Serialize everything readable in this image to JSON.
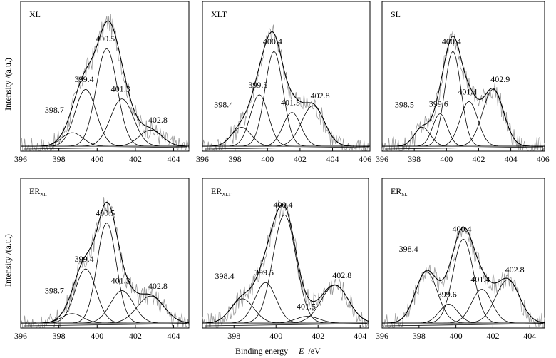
{
  "figure": {
    "ylabel": "Intensity /(a.u.)",
    "xlabel_text": "Binding energy",
    "xlabel_var": "E",
    "xlabel_unit": "/eV"
  },
  "chart_data": [
    {
      "type": "line",
      "title": "XL",
      "title_main": "XL",
      "title_sub": "",
      "xlim": [
        396,
        404.8
      ],
      "xticks": [
        396,
        398,
        400,
        402,
        404
      ],
      "peaks": [
        {
          "center": 398.7,
          "height": 0.1,
          "width": 0.55,
          "label": "398.7"
        },
        {
          "center": 399.4,
          "height": 0.42,
          "width": 0.55,
          "label": "399.4"
        },
        {
          "center": 400.5,
          "height": 0.72,
          "width": 0.55,
          "label": "400.5"
        },
        {
          "center": 401.3,
          "height": 0.35,
          "width": 0.6,
          "label": "401.3"
        },
        {
          "center": 402.8,
          "height": 0.12,
          "width": 0.6,
          "label": "402.8"
        }
      ]
    },
    {
      "type": "line",
      "title": "XLT",
      "title_main": "XLT",
      "title_sub": "",
      "xlim": [
        396,
        406.3
      ],
      "xticks": [
        396,
        398,
        400,
        402,
        404,
        406
      ],
      "peaks": [
        {
          "center": 398.4,
          "height": 0.14,
          "width": 0.6,
          "label": "398.4"
        },
        {
          "center": 399.5,
          "height": 0.38,
          "width": 0.55,
          "label": "399.5"
        },
        {
          "center": 400.4,
          "height": 0.7,
          "width": 0.55,
          "label": "400.4"
        },
        {
          "center": 401.5,
          "height": 0.25,
          "width": 0.55,
          "label": "401.5"
        },
        {
          "center": 402.8,
          "height": 0.3,
          "width": 0.7,
          "label": "402.8"
        }
      ]
    },
    {
      "type": "line",
      "title": "SL",
      "title_main": "SL",
      "title_sub": "",
      "xlim": [
        396,
        406.1
      ],
      "xticks": [
        396,
        398,
        400,
        402,
        404,
        406
      ],
      "peaks": [
        {
          "center": 398.5,
          "height": 0.14,
          "width": 0.5,
          "label": "398.5"
        },
        {
          "center": 399.6,
          "height": 0.24,
          "width": 0.45,
          "label": "399.6"
        },
        {
          "center": 400.4,
          "height": 0.7,
          "width": 0.5,
          "label": "400.4"
        },
        {
          "center": 401.4,
          "height": 0.33,
          "width": 0.55,
          "label": "401.4"
        },
        {
          "center": 402.9,
          "height": 0.42,
          "width": 0.65,
          "label": "402.9"
        }
      ]
    },
    {
      "type": "line",
      "title": "ERXL",
      "title_main": "ER",
      "title_sub": "XL",
      "xlim": [
        396,
        404.8
      ],
      "xticks": [
        396,
        398,
        400,
        402,
        404
      ],
      "peaks": [
        {
          "center": 398.7,
          "height": 0.07,
          "width": 0.55,
          "label": "398.7"
        },
        {
          "center": 399.4,
          "height": 0.4,
          "width": 0.55,
          "label": "399.4"
        },
        {
          "center": 400.5,
          "height": 0.74,
          "width": 0.5,
          "label": "400.5"
        },
        {
          "center": 401.3,
          "height": 0.24,
          "width": 0.6,
          "label": "401.3"
        },
        {
          "center": 402.8,
          "height": 0.2,
          "width": 0.7,
          "label": "402.8"
        }
      ]
    },
    {
      "type": "line",
      "title": "ERXLT",
      "title_main": "ER",
      "title_sub": "XLT",
      "xlim": [
        396.5,
        404.4
      ],
      "xticks": [
        398,
        400,
        402,
        404
      ],
      "peaks": [
        {
          "center": 398.4,
          "height": 0.18,
          "width": 0.55,
          "label": "398.4"
        },
        {
          "center": 399.5,
          "height": 0.3,
          "width": 0.5,
          "label": "399.5"
        },
        {
          "center": 400.4,
          "height": 0.8,
          "width": 0.55,
          "label": "400.4"
        },
        {
          "center": 401.5,
          "height": 0.05,
          "width": 0.55,
          "label": "401.5"
        },
        {
          "center": 402.8,
          "height": 0.28,
          "width": 0.65,
          "label": "402.8"
        }
      ]
    },
    {
      "type": "line",
      "title": "ERSL",
      "title_main": "ER",
      "title_sub": "SL",
      "xlim": [
        396,
        404.8
      ],
      "xticks": [
        396,
        398,
        400,
        402,
        404
      ],
      "peaks": [
        {
          "center": 398.4,
          "height": 0.38,
          "width": 0.6,
          "label": "398.4"
        },
        {
          "center": 399.6,
          "height": 0.14,
          "width": 0.5,
          "label": "399.6"
        },
        {
          "center": 400.4,
          "height": 0.62,
          "width": 0.55,
          "label": "400.4"
        },
        {
          "center": 401.4,
          "height": 0.25,
          "width": 0.55,
          "label": "401.4"
        },
        {
          "center": 402.8,
          "height": 0.32,
          "width": 0.65,
          "label": "402.8"
        }
      ]
    }
  ]
}
